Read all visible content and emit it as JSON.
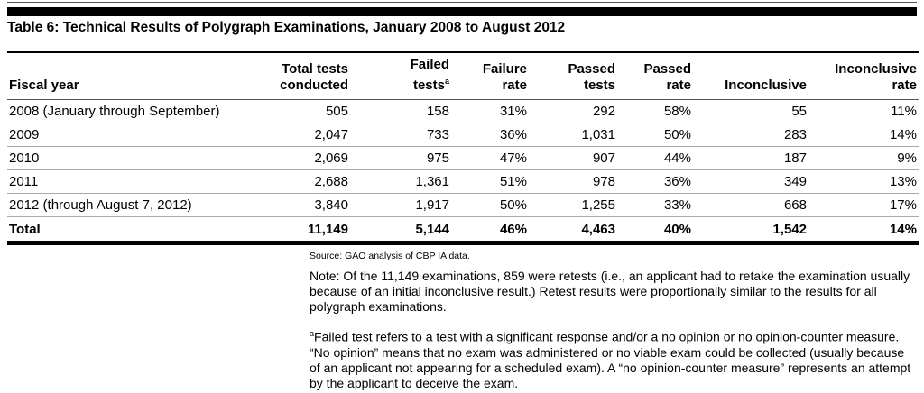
{
  "title": "Table 6: Technical Results of Polygraph Examinations, January 2008 to August 2012",
  "headers": {
    "fiscal_year": "Fiscal year",
    "total_l1": "Total tests",
    "total_l2": "conducted",
    "failed_l1": "Failed",
    "failed_l2": "tests",
    "failed_sup": "a",
    "frate_l1": "Failure",
    "frate_l2": "rate",
    "passed_l1": "Passed",
    "passed_l2": "tests",
    "prate_l1": "Passed",
    "prate_l2": "rate",
    "inc": "Inconclusive",
    "irate_l1": "Inconclusive",
    "irate_l2": "rate"
  },
  "rows": [
    [
      "2008 (January through September)",
      "505",
      "158",
      "31%",
      "292",
      "58%",
      "55",
      "11%"
    ],
    [
      "2009",
      "2,047",
      "733",
      "36%",
      "1,031",
      "50%",
      "283",
      "14%"
    ],
    [
      "2010",
      "2,069",
      "975",
      "47%",
      "907",
      "44%",
      "187",
      "9%"
    ],
    [
      "2011",
      "2,688",
      "1,361",
      "51%",
      "978",
      "36%",
      "349",
      "13%"
    ],
    [
      "2012 (through August 7, 2012)",
      "3,840",
      "1,917",
      "50%",
      "1,255",
      "33%",
      "668",
      "17%"
    ]
  ],
  "total": [
    "Total",
    "11,149",
    "5,144",
    "46%",
    "4,463",
    "40%",
    "1,542",
    "14%"
  ],
  "source": "Source: GAO analysis of CBP IA data.",
  "note": "Note: Of the 11,149 examinations, 859 were retests (i.e., an applicant had to retake the examination usually because of  an initial inconclusive result.) Retest results were proportionally similar to the results for all polygraph examinations.",
  "footnote_mark": "a",
  "footnote": "Failed test refers to a test with a significant response and/or a no opinion or no opinion-counter measure. “No opinion” means that no exam was administered or no viable exam could be collected (usually because of an applicant not appearing for a scheduled exam). A “no opinion-counter measure” represents an attempt by the applicant to deceive the exam."
}
